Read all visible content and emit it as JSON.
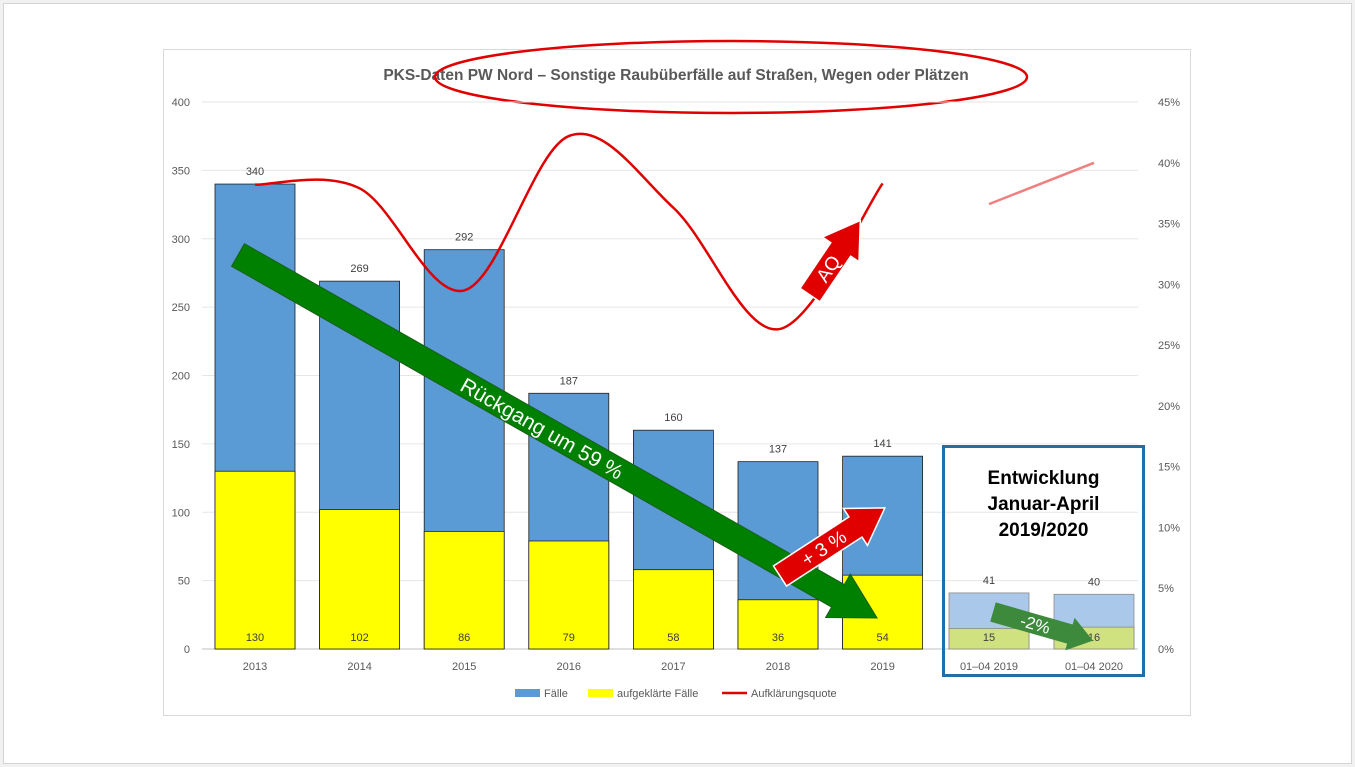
{
  "chart_data": {
    "type": "bar",
    "title": "PKS-Daten PW Nord – Sonstige Raubüberfälle auf Straßen, Wegen oder Plätzen",
    "categories": [
      "2013",
      "2014",
      "2015",
      "2016",
      "2017",
      "2018",
      "2019"
    ],
    "series": [
      {
        "name": "Fälle",
        "values": [
          340,
          269,
          292,
          187,
          160,
          137,
          141
        ],
        "color": "#5b9bd5"
      },
      {
        "name": "aufgeklärte Fälle",
        "values": [
          130,
          102,
          86,
          79,
          58,
          36,
          54
        ],
        "color": "#ffff00"
      },
      {
        "name": "Aufklärungsquote",
        "values": [
          38.2,
          37.9,
          29.5,
          42.2,
          36.3,
          26.3,
          38.3
        ],
        "color": "#e00000",
        "axis": "right"
      }
    ],
    "y_left": {
      "min": 0,
      "max": 400,
      "ticks": [
        0,
        50,
        100,
        150,
        200,
        250,
        300,
        350,
        400
      ]
    },
    "y_right": {
      "min": 0,
      "max": 45,
      "ticks": [
        "0%",
        "5%",
        "10%",
        "15%",
        "20%",
        "25%",
        "30%",
        "35%",
        "40%",
        "45%"
      ]
    },
    "sub_period": {
      "title": "Entwicklung\nJanuar-April\n2019/2020",
      "categories": [
        "01–04 2019",
        "01–04 2020"
      ],
      "faelle": [
        41,
        40
      ],
      "aufgeklaert": [
        15,
        16
      ],
      "quote": [
        36.6,
        40.0
      ],
      "colors": {
        "faelle": "#a9c8ea",
        "aufgeklaert": "#cfe27f",
        "quote": "#f08080"
      }
    },
    "legend": {
      "position": "bottom",
      "items": [
        "Fälle",
        "aufgeklärte Fälle",
        "Aufklärungsquote"
      ]
    },
    "annotations": {
      "decline": "Rückgang um 59 %",
      "increase": "+ 3 %",
      "aq": "AQ",
      "sub_change": "-2%"
    }
  }
}
